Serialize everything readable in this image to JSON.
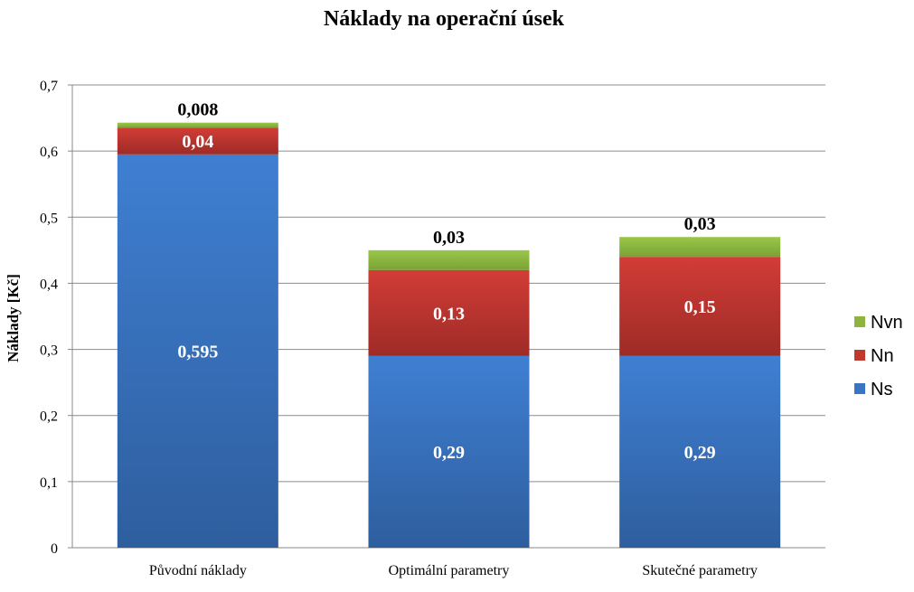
{
  "chart_data": {
    "type": "bar",
    "stacked": true,
    "title": "Náklady na operační úsek",
    "xlabel": "",
    "ylabel": "Náklady  [Kč]",
    "ylim": [
      0,
      0.7
    ],
    "yticks": [
      "0",
      "0,1",
      "0,2",
      "0,3",
      "0,4",
      "0,5",
      "0,6",
      "0,7"
    ],
    "grid": true,
    "legend_position": "right",
    "categories": [
      "Původní náklady",
      "Optimální parametry",
      "Skutečné parametry"
    ],
    "series": [
      {
        "name": "Ns",
        "color": "#3a75c4",
        "values": [
          0.595,
          0.29,
          0.29
        ],
        "labels": [
          "0,595",
          "0,29",
          "0,29"
        ]
      },
      {
        "name": "Nn",
        "color": "#c0392f",
        "values": [
          0.04,
          0.13,
          0.15
        ],
        "labels": [
          "0,04",
          "0,13",
          "0,15"
        ]
      },
      {
        "name": "Nvn",
        "color": "#8cb43e",
        "values": [
          0.008,
          0.03,
          0.03
        ],
        "labels": [
          "0,008",
          "0,03",
          "0,03"
        ]
      }
    ]
  }
}
